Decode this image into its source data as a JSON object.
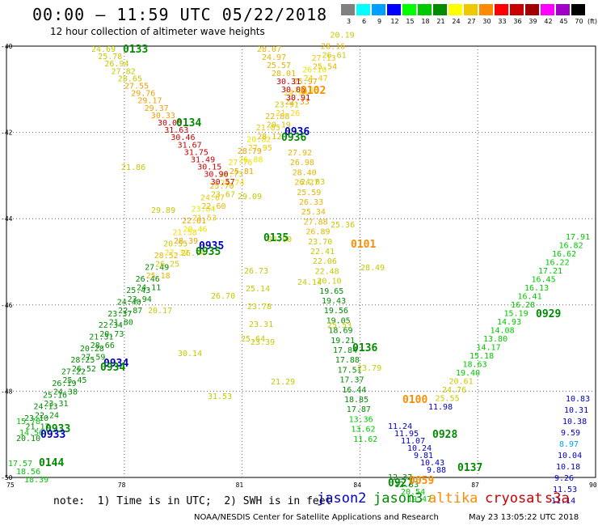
{
  "header": {
    "title": "00:00 – 11:59 UTC 05/22/2018",
    "subtitle": "12 hour collection of altimeter wave heights"
  },
  "legend": {
    "unit": "(ft)",
    "bins": [
      {
        "label": "3",
        "color": "#808080"
      },
      {
        "label": "6",
        "color": "#00ffff"
      },
      {
        "label": "9",
        "color": "#00a0ff"
      },
      {
        "label": "12",
        "color": "#0000ff"
      },
      {
        "label": "15",
        "color": "#00ff00"
      },
      {
        "label": "18",
        "color": "#00c800"
      },
      {
        "label": "21",
        "color": "#008c00"
      },
      {
        "label": "24",
        "color": "#ffff00"
      },
      {
        "label": "27",
        "color": "#f0c800"
      },
      {
        "label": "30",
        "color": "#ff8c00"
      },
      {
        "label": "33",
        "color": "#ff0000"
      },
      {
        "label": "36",
        "color": "#c80000"
      },
      {
        "label": "39",
        "color": "#a00000"
      },
      {
        "label": "42",
        "color": "#ff00ff"
      },
      {
        "label": "45",
        "color": "#a000c8"
      },
      {
        "label": "70",
        "color": "#000000"
      }
    ]
  },
  "axes": {
    "lon_ticks": [
      "75",
      "78",
      "81",
      "84",
      "87",
      "90"
    ],
    "lat_ticks": [
      "-40",
      "-42",
      "-44",
      "-46",
      "-48",
      "-50"
    ]
  },
  "tracks": [
    {
      "name": "0133",
      "color": "#008c00"
    },
    {
      "name": "0134",
      "color": "#008c00"
    },
    {
      "name": "0135",
      "color": "#008c00"
    },
    {
      "name": "0136",
      "color": "#008c00"
    },
    {
      "name": "0137",
      "color": "#008c00"
    },
    {
      "name": "0144",
      "color": "#008c00"
    },
    {
      "name": "0933",
      "color": "#008c00"
    },
    {
      "name": "0933",
      "color": "#0000c8"
    },
    {
      "name": "0934",
      "color": "#008c00"
    },
    {
      "name": "0934",
      "color": "#0000c8"
    },
    {
      "name": "0935",
      "color": "#008c00"
    },
    {
      "name": "0935",
      "color": "#0000c8"
    },
    {
      "name": "0936",
      "color": "#008c00"
    },
    {
      "name": "0936",
      "color": "#0000c8"
    },
    {
      "name": "0927",
      "color": "#008c00"
    },
    {
      "name": "0928",
      "color": "#008c00"
    },
    {
      "name": "0929",
      "color": "#008c00"
    },
    {
      "name": "0100",
      "color": "#ff8c00"
    },
    {
      "name": "0101",
      "color": "#ff8c00"
    },
    {
      "name": "0102",
      "color": "#ff8c00"
    },
    {
      "name": "0059",
      "color": "#ff8c00"
    }
  ],
  "readings": {
    "track_0133": [
      "24.69",
      "25.78",
      "26.94",
      "27.82",
      "28.65",
      "27.55",
      "29.76",
      "29.17",
      "29.37",
      "30.33",
      "30.05",
      "31.63",
      "30.46",
      "31.67",
      "31.75",
      "31.49",
      "30.15",
      "30.90",
      "30.57"
    ],
    "track_0135_0136": [
      "27.92",
      "26.98",
      "28.40",
      "26.27",
      "25.59",
      "26.33",
      "25.34",
      "27.88",
      "26.89",
      "23.70",
      "22.41",
      "22.06",
      "22.48",
      "20.10",
      "19.65",
      "19.43",
      "19.56",
      "19.05",
      "18.69",
      "19.21",
      "17.84",
      "17.88",
      "17.51",
      "17.37",
      "16.44",
      "18.85",
      "17.87",
      "13.36",
      "13.62",
      "11.62"
    ],
    "track_0102_upper": [
      "28.07",
      "24.97",
      "25.57",
      "28.01",
      "30.31",
      "30.05",
      "30.91",
      "26.73",
      "25.14",
      "23.78",
      "23.31",
      "23.39"
    ],
    "track_0928": [
      "11.24",
      "11.95",
      "11.07",
      "10.24",
      "9.81",
      "10.43",
      "9.88",
      "12.37",
      "12.33",
      "20.54",
      "19.47"
    ],
    "track_0929": [
      "17.91",
      "16.82",
      "16.62",
      "16.22",
      "17.21",
      "16.45",
      "16.13",
      "16.41",
      "16.28",
      "15.19",
      "14.93",
      "14.08",
      "13.80",
      "14.17",
      "15.18",
      "18.63",
      "19.40",
      "20.61",
      "24.76",
      "25.55",
      "11.98"
    ],
    "track_0928_blue": [
      "10.83",
      "10.31",
      "10.38",
      "9.59",
      "8.97",
      "10.04",
      "10.18",
      "9.26",
      "11.53",
      "11.14"
    ],
    "track_0144": [
      "17.57",
      "18.56",
      "18.39",
      "15.78",
      "14.56"
    ],
    "misc": [
      "21.86",
      "29.89",
      "26.74",
      "26.70",
      "25.64",
      "21.29",
      "24.03",
      "25.36",
      "28.49",
      "20.17",
      "30.14",
      "31.53",
      "29.09",
      "24.90",
      "24.14",
      "25.53",
      "23.79"
    ]
  },
  "footer": {
    "note": "note:  1) Time is in UTC;  2) SWH is in feet",
    "satellites": [
      {
        "name": "jason2",
        "color": "#0000c8"
      },
      {
        "name": "jason3",
        "color": "#008c00"
      },
      {
        "name": "altika",
        "color": "#ff8c00"
      },
      {
        "name": "cryosat",
        "color": "#c80000"
      },
      {
        "name": "s3a",
        "color": "#c80000"
      }
    ],
    "credit": "NOAA/NESDIS Center for Satellite Applications and Research",
    "timestamp": "May 23 13:05:22 UTC 2018"
  }
}
